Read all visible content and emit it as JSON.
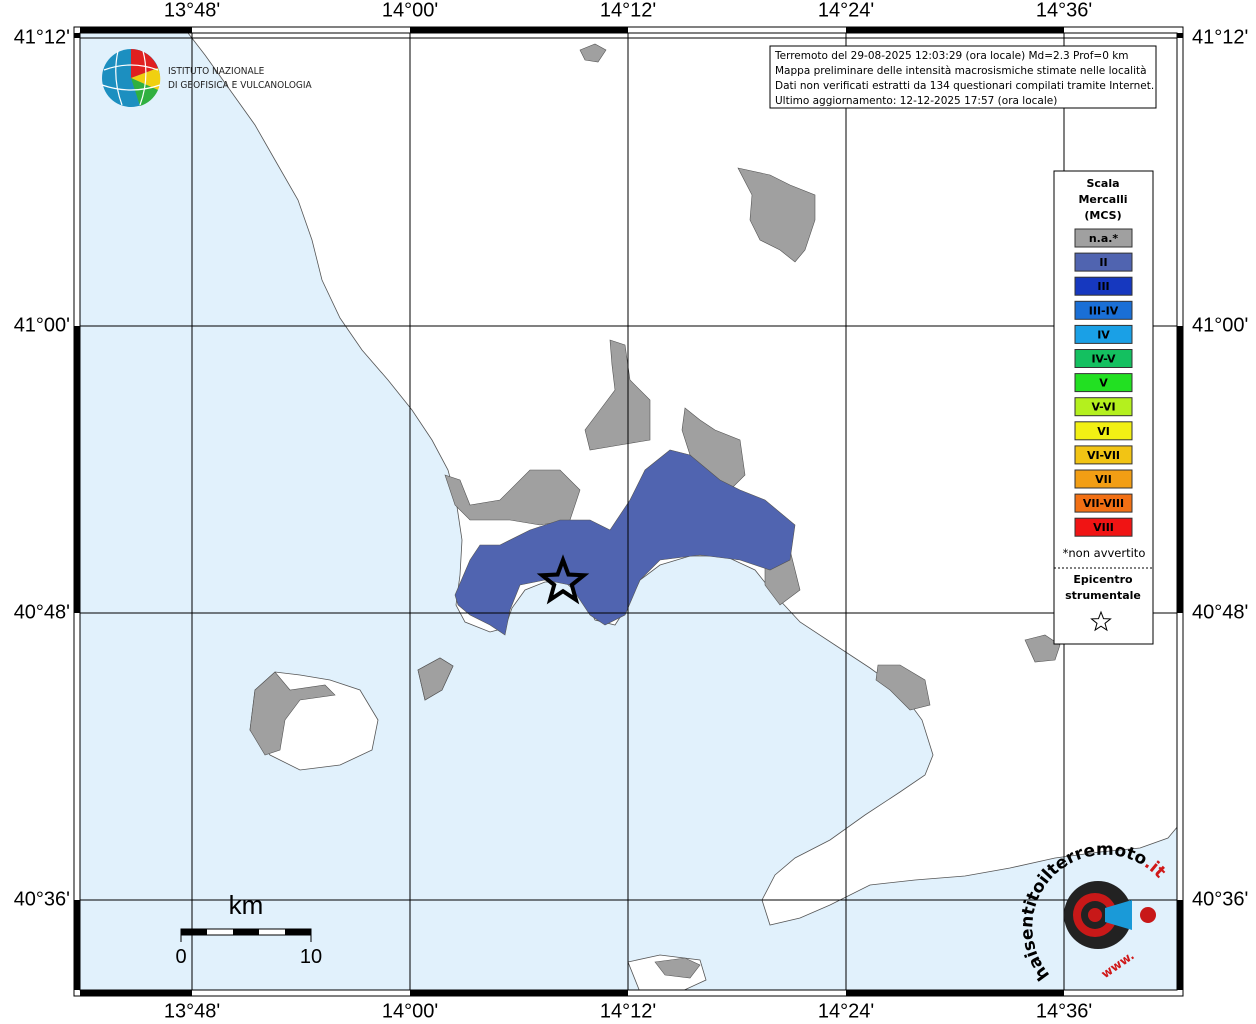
{
  "map": {
    "lon_labels": [
      "13°48'",
      "14°00'",
      "14°12'",
      "14°24'",
      "14°36'"
    ],
    "lat_labels": [
      "41°12'",
      "41°00'",
      "40°48'",
      "40°36'"
    ],
    "info": [
      "Terremoto del 29-08-2025 12:03:29 (ora locale) Md=2.3 Prof=0 km",
      "Mappa preliminare delle intensità macrosismiche stimate nelle località",
      "Dati non verificati estratti da 134 questionari compilati tramite Internet.",
      "Ultimo aggiornamento: 12-12-2025 17:57 (ora locale)"
    ],
    "legend": {
      "title": [
        "Scala",
        "Mercalli",
        "(MCS)"
      ],
      "items": [
        {
          "label": "n.a.*",
          "color": "#a0a0a0"
        },
        {
          "label": "II",
          "color": "#5064b0"
        },
        {
          "label": "III",
          "color": "#1638bf"
        },
        {
          "label": "III-IV",
          "color": "#1a6fd6"
        },
        {
          "label": "IV",
          "color": "#1aa0e6"
        },
        {
          "label": "IV-V",
          "color": "#14c060"
        },
        {
          "label": "V",
          "color": "#22e022"
        },
        {
          "label": "V-VI",
          "color": "#b4f01e"
        },
        {
          "label": "VI",
          "color": "#f2f014"
        },
        {
          "label": "VI-VII",
          "color": "#f2c414"
        },
        {
          "label": "VII",
          "color": "#f29e14"
        },
        {
          "label": "VII-VIII",
          "color": "#f27014"
        },
        {
          "label": "VIII",
          "color": "#f01414"
        }
      ],
      "note": "*non avvertito",
      "epicenter": [
        "Epicentro",
        "strumentale"
      ]
    },
    "scale": {
      "unit": "km",
      "ticks": [
        "0",
        "10"
      ]
    },
    "logos": {
      "ingv": [
        "ISTITUTO NAZIONALE",
        "DI GEOFISICA E VULCANOLOGIA"
      ],
      "hsit": [
        "haisentito",
        "ilterremoto",
        ".it"
      ],
      "www": "www."
    }
  }
}
